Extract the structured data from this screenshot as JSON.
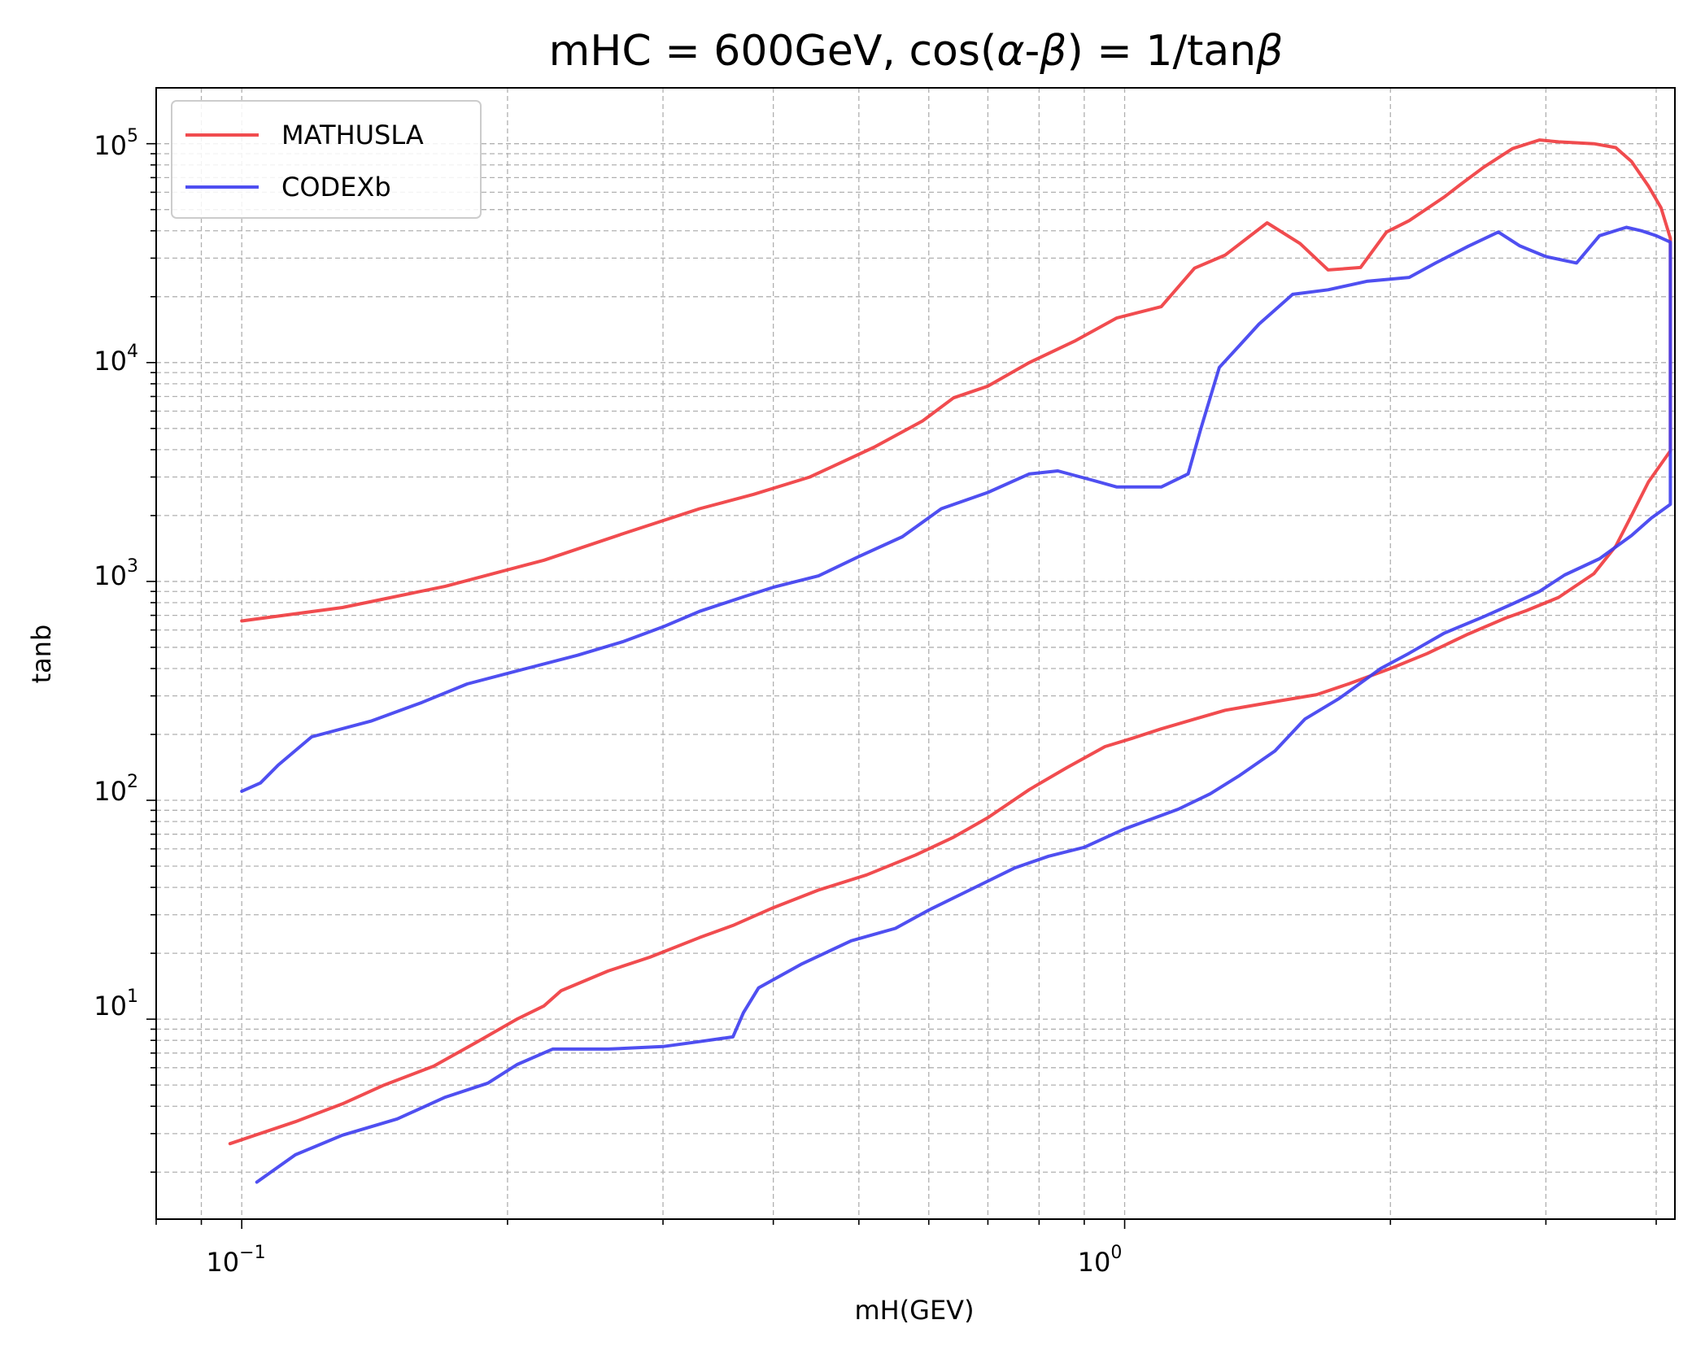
{
  "chart_data": {
    "type": "line",
    "title_parts": {
      "prefix": "mHC = 600GeV, cos(",
      "alpha": "α",
      "dash": "-",
      "beta": "β",
      "middle": ") = 1/tan",
      "beta2": "β"
    },
    "xlabel": "mH(GEV)",
    "ylabel": "tanb",
    "x_scale": "log",
    "y_scale": "log",
    "xlim": [
      0.08,
      4.2
    ],
    "ylim": [
      1.22,
      180000
    ],
    "x_ticks": [
      {
        "base": "10",
        "exp": "−1",
        "value": 0.1
      },
      {
        "base": "10",
        "exp": "0",
        "value": 1
      }
    ],
    "y_ticks": [
      {
        "base": "10",
        "exp": "1",
        "value": 10
      },
      {
        "base": "10",
        "exp": "2",
        "value": 100
      },
      {
        "base": "10",
        "exp": "3",
        "value": 1000
      },
      {
        "base": "10",
        "exp": "4",
        "value": 10000
      },
      {
        "base": "10",
        "exp": "5",
        "value": 100000
      }
    ],
    "grid": "both (major and minor), dashed",
    "legend_position": "top-left",
    "series": [
      {
        "name": "MATHUSLA",
        "color": "#f0383c",
        "points": [
          [
            0.097,
            2.7
          ],
          [
            0.115,
            3.4
          ],
          [
            0.13,
            4.1
          ],
          [
            0.145,
            5.0
          ],
          [
            0.165,
            6.1
          ],
          [
            0.185,
            7.9
          ],
          [
            0.205,
            10.0
          ],
          [
            0.22,
            11.5
          ],
          [
            0.23,
            13.5
          ],
          [
            0.26,
            16.6
          ],
          [
            0.29,
            19.2
          ],
          [
            0.33,
            23.6
          ],
          [
            0.36,
            26.8
          ],
          [
            0.4,
            32.3
          ],
          [
            0.45,
            38.9
          ],
          [
            0.51,
            45.6
          ],
          [
            0.58,
            56.3
          ],
          [
            0.64,
            67.8
          ],
          [
            0.7,
            83.3
          ],
          [
            0.78,
            112
          ],
          [
            0.86,
            141
          ],
          [
            0.95,
            176
          ],
          [
            1.02,
            192
          ],
          [
            1.1,
            212
          ],
          [
            1.2,
            235
          ],
          [
            1.3,
            258
          ],
          [
            1.5,
            285
          ],
          [
            1.65,
            304
          ],
          [
            1.8,
            342
          ],
          [
            2.0,
            400
          ],
          [
            2.2,
            468
          ],
          [
            2.45,
            575
          ],
          [
            2.7,
            680
          ],
          [
            2.85,
            735
          ],
          [
            3.1,
            845
          ],
          [
            3.4,
            1085
          ],
          [
            3.6,
            1450
          ],
          [
            3.75,
            2000
          ],
          [
            3.92,
            2850
          ],
          [
            4.15,
            3950
          ],
          [
            4.15,
            37000
          ],
          [
            4.05,
            51000
          ],
          [
            3.92,
            64000
          ],
          [
            3.75,
            83000
          ],
          [
            3.6,
            96000
          ],
          [
            3.4,
            100000
          ],
          [
            3.1,
            102000
          ],
          [
            2.95,
            104000
          ],
          [
            2.75,
            95000
          ],
          [
            2.55,
            78000
          ],
          [
            2.4,
            65000
          ],
          [
            2.3,
            57000
          ],
          [
            2.1,
            44500
          ],
          [
            1.98,
            39500
          ],
          [
            1.85,
            27200
          ],
          [
            1.7,
            26500
          ],
          [
            1.58,
            35000
          ],
          [
            1.45,
            43500
          ],
          [
            1.3,
            31000
          ],
          [
            1.2,
            27000
          ],
          [
            1.1,
            18000
          ],
          [
            0.98,
            16000
          ],
          [
            0.88,
            12600
          ],
          [
            0.78,
            10000
          ],
          [
            0.7,
            7800
          ],
          [
            0.64,
            6900
          ],
          [
            0.59,
            5400
          ],
          [
            0.52,
            4100
          ],
          [
            0.44,
            3000
          ],
          [
            0.38,
            2500
          ],
          [
            0.33,
            2150
          ],
          [
            0.27,
            1650
          ],
          [
            0.22,
            1250
          ],
          [
            0.17,
            950
          ],
          [
            0.13,
            760
          ],
          [
            0.1,
            660
          ]
        ]
      },
      {
        "name": "CODEXb",
        "color": "#3c3cf0",
        "points": [
          [
            0.104,
            1.8
          ],
          [
            0.115,
            2.4
          ],
          [
            0.13,
            2.95
          ],
          [
            0.15,
            3.5
          ],
          [
            0.17,
            4.4
          ],
          [
            0.19,
            5.1
          ],
          [
            0.205,
            6.2
          ],
          [
            0.225,
            7.3
          ],
          [
            0.26,
            7.3
          ],
          [
            0.3,
            7.5
          ],
          [
            0.33,
            7.9
          ],
          [
            0.36,
            8.3
          ],
          [
            0.37,
            10.7
          ],
          [
            0.385,
            13.9
          ],
          [
            0.43,
            17.8
          ],
          [
            0.49,
            22.8
          ],
          [
            0.55,
            26.0
          ],
          [
            0.6,
            31.5
          ],
          [
            0.67,
            39.2
          ],
          [
            0.75,
            49.0
          ],
          [
            0.82,
            55.5
          ],
          [
            0.9,
            61.0
          ],
          [
            1.0,
            74.0
          ],
          [
            1.15,
            91.0
          ],
          [
            1.25,
            107
          ],
          [
            1.35,
            130
          ],
          [
            1.48,
            168
          ],
          [
            1.6,
            235
          ],
          [
            1.75,
            292
          ],
          [
            1.95,
            400
          ],
          [
            2.1,
            470
          ],
          [
            2.3,
            580
          ],
          [
            2.55,
            690
          ],
          [
            2.75,
            790
          ],
          [
            2.95,
            900
          ],
          [
            3.15,
            1070
          ],
          [
            3.45,
            1270
          ],
          [
            3.75,
            1620
          ],
          [
            3.95,
            1950
          ],
          [
            4.15,
            2250
          ],
          [
            4.15,
            35500
          ],
          [
            4.0,
            38000
          ],
          [
            3.85,
            40000
          ],
          [
            3.7,
            41500
          ],
          [
            3.45,
            38000
          ],
          [
            3.25,
            28500
          ],
          [
            3.0,
            30500
          ],
          [
            2.8,
            34200
          ],
          [
            2.65,
            39500
          ],
          [
            2.45,
            34000
          ],
          [
            2.25,
            28500
          ],
          [
            2.1,
            24500
          ],
          [
            1.88,
            23500
          ],
          [
            1.7,
            21500
          ],
          [
            1.55,
            20500
          ],
          [
            1.42,
            15000
          ],
          [
            1.35,
            12000
          ],
          [
            1.28,
            9500
          ],
          [
            1.22,
            5000
          ],
          [
            1.18,
            3100
          ],
          [
            1.1,
            2700
          ],
          [
            0.98,
            2700
          ],
          [
            0.92,
            2900
          ],
          [
            0.84,
            3200
          ],
          [
            0.78,
            3100
          ],
          [
            0.7,
            2550
          ],
          [
            0.62,
            2150
          ],
          [
            0.56,
            1600
          ],
          [
            0.5,
            1300
          ],
          [
            0.45,
            1060
          ],
          [
            0.4,
            940
          ],
          [
            0.37,
            850
          ],
          [
            0.33,
            730
          ],
          [
            0.3,
            620
          ],
          [
            0.27,
            530
          ],
          [
            0.24,
            460
          ],
          [
            0.21,
            400
          ],
          [
            0.18,
            340
          ],
          [
            0.16,
            280
          ],
          [
            0.14,
            230
          ],
          [
            0.12,
            195
          ],
          [
            0.11,
            145
          ],
          [
            0.105,
            120
          ],
          [
            0.1,
            110
          ]
        ]
      }
    ]
  }
}
